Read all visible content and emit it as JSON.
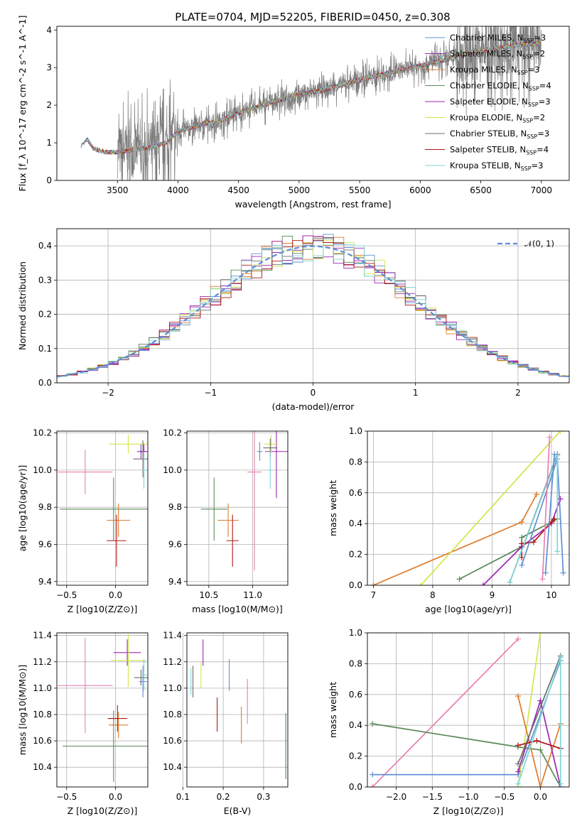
{
  "title": "PLATE=0704, MJD=52205, FIBERID=0450, z=0.308",
  "colors": {
    "Chabrier MILES": "#5f8fd6",
    "Salpeter MILES": "#9b27b0",
    "Kroupa MILES": "#df7a2a",
    "Chabrier ELODIE": "#5a8a5a",
    "Salpeter ELODIE": "#a022b0",
    "Kroupa ELODIE": "#d2e64a",
    "Chabrier STELIB": "#6e6e6e",
    "Salpeter STELIB": "#b01818",
    "Kroupa STELIB": "#7fd6d6"
  },
  "legend_spectrum": [
    {
      "name": "Chabrier MILES",
      "suffix": "=3"
    },
    {
      "name": "Salpeter MILES",
      "suffix": "=2"
    },
    {
      "name": "Kroupa MILES",
      "suffix": "=3"
    },
    {
      "name": "Chabrier ELODIE",
      "suffix": "=4"
    },
    {
      "name": "Salpeter ELODIE",
      "suffix": "=3"
    },
    {
      "name": "Kroupa ELODIE",
      "suffix": "=2"
    },
    {
      "name": "Chabrier STELIB",
      "suffix": "=3"
    },
    {
      "name": "Salpeter STELIB",
      "suffix": "=4"
    },
    {
      "name": "Kroupa STELIB",
      "suffix": "=3"
    }
  ],
  "legend_hist": "𝒩(0, 1)",
  "chart_data": [
    {
      "id": "spectrum",
      "type": "line",
      "xlabel": "wavelength [Angstrom, rest frame]",
      "ylabel": "Flux [f_λ 10^-17 erg cm^-2 s^-1 A^-1]",
      "xlim": [
        3000,
        7230
      ],
      "ylim": [
        0,
        4.1
      ],
      "xticks": [
        3500,
        4000,
        4500,
        5000,
        5500,
        6000,
        6500,
        7000
      ],
      "yticks": [
        0,
        1,
        2,
        3,
        4
      ],
      "grid": false,
      "model_points": [
        [
          3200,
          0.9
        ],
        [
          3250,
          1.1
        ],
        [
          3300,
          0.85
        ],
        [
          3400,
          0.75
        ],
        [
          3500,
          0.75
        ],
        [
          3600,
          0.8
        ],
        [
          3700,
          0.85
        ],
        [
          3800,
          0.9
        ],
        [
          3900,
          1.0
        ],
        [
          4000,
          1.3
        ],
        [
          4100,
          1.4
        ],
        [
          4200,
          1.5
        ],
        [
          4300,
          1.55
        ],
        [
          4400,
          1.65
        ],
        [
          4500,
          1.8
        ],
        [
          4600,
          1.9
        ],
        [
          4800,
          2.1
        ],
        [
          5000,
          2.3
        ],
        [
          5200,
          2.4
        ],
        [
          5400,
          2.6
        ],
        [
          5600,
          2.75
        ],
        [
          5800,
          2.9
        ],
        [
          6000,
          3.05
        ],
        [
          6200,
          3.2
        ],
        [
          6400,
          3.4
        ],
        [
          6600,
          3.5
        ],
        [
          6800,
          3.6
        ],
        [
          7000,
          3.65
        ]
      ]
    },
    {
      "id": "residual_hist",
      "type": "histogram",
      "xlabel": "(data-model)/error",
      "ylabel": "Normed distribution",
      "xlim": [
        -2.5,
        2.5
      ],
      "ylim": [
        0,
        0.45
      ],
      "xticks": [
        -2,
        -1,
        0,
        1,
        2
      ],
      "yticks": [
        0.0,
        0.1,
        0.2,
        0.3,
        0.4
      ],
      "grid": true,
      "legend": "top-right",
      "bin_width": 0.1
    },
    {
      "id": "age_vs_Z",
      "type": "scatter",
      "xlabel": "Z [log10(Z/Z⊙)]",
      "ylabel": "age [log10(age/yr)]",
      "xlim": [
        -0.6,
        0.33
      ],
      "ylim": [
        9.38,
        10.21
      ],
      "xticks": [
        -0.5,
        0.0
      ],
      "yticks": [
        9.4,
        9.6,
        9.8,
        10.0,
        10.2
      ],
      "grid": true,
      "points": [
        {
          "series": "Chabrier MILES",
          "x": 0.28,
          "y": 10.1,
          "xerr": 0.03,
          "yerr": 0.05
        },
        {
          "series": "Salpeter MILES",
          "x": 0.26,
          "y": 10.1,
          "xerr": 0.04,
          "yerr": 0.04
        },
        {
          "series": "Kroupa MILES",
          "x": 0.03,
          "y": 9.73,
          "xerr": 0.12,
          "yerr": 0.09
        },
        {
          "series": "Chabrier ELODIE",
          "x": -0.02,
          "y": 9.79,
          "xerr": 0.55,
          "yerr": 0.17
        },
        {
          "series": "Salpeter ELODIE",
          "x": 0.29,
          "y": 10.1,
          "xerr": 0.04,
          "yerr": 0.04
        },
        {
          "series": "Kroupa ELODIE",
          "x": 0.13,
          "y": 10.14,
          "xerr": 0.2,
          "yerr": 0.05
        },
        {
          "series": "Chabrier STELIB",
          "x": 0.28,
          "y": 10.06,
          "xerr": 0.1,
          "yerr": 0.1
        },
        {
          "series": "Salpeter STELIB",
          "x": 0.01,
          "y": 9.62,
          "xerr": 0.1,
          "yerr": 0.14
        },
        {
          "series": "Kroupa STELIB",
          "x": 0.29,
          "y": 10.0,
          "xerr": 0.03,
          "yerr": 0.1
        },
        {
          "series": "Pink",
          "x": -0.31,
          "y": 9.99,
          "xerr": 0.28,
          "yerr": 0.12
        }
      ]
    },
    {
      "id": "age_vs_mass",
      "type": "scatter",
      "xlabel": "mass [log10(M/M⊙)]",
      "ylabel": "",
      "xlim": [
        10.25,
        11.4
      ],
      "ylim": [
        9.38,
        10.21
      ],
      "xticks": [
        10.5,
        11.0
      ],
      "yticks": [
        9.4,
        9.6,
        9.8,
        10.0,
        10.2
      ],
      "grid": true,
      "points": [
        {
          "series": "Chabrier MILES",
          "x": 11.08,
          "y": 10.1,
          "xerr": 0.03,
          "yerr": 0.05
        },
        {
          "series": "Salpeter MILES",
          "x": 11.27,
          "y": 10.1,
          "xerr": 0.13,
          "yerr": 0.25
        },
        {
          "series": "Kroupa MILES",
          "x": 10.72,
          "y": 9.73,
          "xerr": 0.12,
          "yerr": 0.09
        },
        {
          "series": "Chabrier ELODIE",
          "x": 10.56,
          "y": 9.79,
          "xerr": 0.15,
          "yerr": 0.17
        },
        {
          "series": "Kroupa ELODIE",
          "x": 11.21,
          "y": 10.14,
          "xerr": 0.08,
          "yerr": 0.05
        },
        {
          "series": "Chabrier STELIB",
          "x": 11.2,
          "y": 10.12,
          "xerr": 0.08,
          "yerr": 0.05
        },
        {
          "series": "Salpeter STELIB",
          "x": 10.77,
          "y": 9.62,
          "xerr": 0.07,
          "yerr": 0.14
        },
        {
          "series": "Kroupa STELIB",
          "x": 11.2,
          "y": 10.0,
          "xerr": 0.03,
          "yerr": 0.1
        },
        {
          "series": "Pink",
          "x": 11.02,
          "y": 9.99,
          "xerr": 0.08,
          "yerr": 0.53
        }
      ]
    },
    {
      "id": "mw_vs_age",
      "type": "line",
      "xlabel": "age [log10(age/yr)]",
      "ylabel": "mass weight",
      "xlim": [
        6.9,
        10.3
      ],
      "ylim": [
        0,
        1.0
      ],
      "xticks": [
        7,
        8,
        9,
        10
      ],
      "yticks": [
        0.0,
        0.2,
        0.4,
        0.6,
        0.8,
        1.0
      ],
      "grid": true,
      "series": [
        {
          "series": "Kroupa MILES",
          "points": [
            [
              7.0,
              0.0
            ],
            [
              9.5,
              0.41
            ],
            [
              9.75,
              0.59
            ]
          ]
        },
        {
          "series": "Kroupa ELODIE",
          "points": [
            [
              7.8,
              0.0
            ],
            [
              10.15,
              1.0
            ]
          ]
        },
        {
          "series": "Chabrier ELODIE",
          "points": [
            [
              8.45,
              0.04
            ],
            [
              9.5,
              0.25
            ],
            [
              9.5,
              0.31
            ],
            [
              10.1,
              0.43
            ]
          ]
        },
        {
          "series": "Salpeter MILES",
          "points": [
            [
              8.85,
              0.0
            ],
            [
              9.5,
              0.25
            ],
            [
              10.0,
              0.4
            ],
            [
              10.15,
              0.56
            ]
          ]
        },
        {
          "series": "Salpeter STELIB",
          "points": [
            [
              9.5,
              0.18
            ],
            [
              9.5,
              0.27
            ],
            [
              9.7,
              0.28
            ],
            [
              10.0,
              0.41
            ],
            [
              10.05,
              0.43
            ]
          ]
        },
        {
          "series": "Chabrier MILES",
          "points": [
            [
              9.5,
              0.13
            ],
            [
              10.1,
              0.82
            ],
            [
              10.2,
              0.08
            ]
          ]
        },
        {
          "series": "Chabrier STELIB",
          "points": [
            [
              9.3,
              0.02
            ],
            [
              10.1,
              0.85
            ]
          ]
        },
        {
          "series": "Kroupa STELIB",
          "points": [
            [
              9.3,
              0.02
            ],
            [
              10.1,
              0.84
            ],
            [
              10.1,
              0.22
            ]
          ]
        },
        {
          "series": "Pink",
          "points": [
            [
              9.85,
              0.04
            ],
            [
              9.97,
              0.96
            ]
          ]
        },
        {
          "series": "Chabrier MILES",
          "points": [
            [
              9.9,
              0.08
            ],
            [
              10.05,
              0.85
            ]
          ]
        }
      ]
    },
    {
      "id": "mass_vs_Z",
      "type": "scatter",
      "xlabel": "Z [log10(Z/Z⊙)]",
      "ylabel": "mass [log10(M/M⊙)]",
      "xlim": [
        -0.6,
        0.33
      ],
      "ylim": [
        10.25,
        11.42
      ],
      "xticks": [
        -0.5,
        0.0
      ],
      "yticks": [
        10.4,
        10.6,
        10.8,
        11.0,
        11.2,
        11.4
      ],
      "grid": true,
      "points": [
        {
          "series": "Chabrier MILES",
          "x": 0.28,
          "y": 11.05,
          "xerr": 0.04,
          "yerr": 0.12
        },
        {
          "series": "Salpeter MILES",
          "x": 0.12,
          "y": 11.27,
          "xerr": 0.14,
          "yerr": 0.1
        },
        {
          "series": "Kroupa MILES",
          "x": 0.03,
          "y": 10.72,
          "xerr": 0.1,
          "yerr": 0.1
        },
        {
          "series": "Chabrier ELODIE",
          "x": -0.02,
          "y": 10.56,
          "xerr": 0.52,
          "yerr": 0.27
        },
        {
          "series": "Kroupa ELODIE",
          "x": 0.13,
          "y": 11.21,
          "xerr": 0.18,
          "yerr": 0.2
        },
        {
          "series": "Chabrier STELIB",
          "x": 0.26,
          "y": 11.08,
          "xerr": 0.07,
          "yerr": 0.06
        },
        {
          "series": "Salpeter STELIB",
          "x": 0.02,
          "y": 10.77,
          "xerr": 0.1,
          "yerr": 0.1
        },
        {
          "series": "Kroupa STELIB",
          "x": 0.29,
          "y": 11.1,
          "xerr": 0.03,
          "yerr": 0.12
        },
        {
          "series": "Pink",
          "x": -0.31,
          "y": 11.02,
          "xerr": 0.28,
          "yerr": 0.36
        }
      ]
    },
    {
      "id": "mass_vs_ebv",
      "type": "scatter",
      "xlabel": "E(B-V)",
      "ylabel": "",
      "xlim": [
        0.11,
        0.36
      ],
      "ylim": [
        10.25,
        11.42
      ],
      "xticks": [
        0.1,
        0.2,
        0.3
      ],
      "yticks": [
        10.4,
        10.6,
        10.8,
        11.0,
        11.2,
        11.4
      ],
      "grid": true,
      "points": [
        {
          "series": "Chabrier MILES",
          "x": 0.215,
          "y": 11.1,
          "xerr": 0,
          "yerr": 0.12
        },
        {
          "series": "Salpeter MILES",
          "x": 0.15,
          "y": 11.27,
          "xerr": 0,
          "yerr": 0.1
        },
        {
          "series": "Kroupa MILES",
          "x": 0.245,
          "y": 10.72,
          "xerr": 0,
          "yerr": 0.14
        },
        {
          "series": "Chabrier ELODIE",
          "x": 0.355,
          "y": 10.56,
          "xerr": 0,
          "yerr": 0.25
        },
        {
          "series": "Kroupa ELODIE",
          "x": 0.145,
          "y": 11.1,
          "xerr": 0,
          "yerr": 0.1
        },
        {
          "series": "Chabrier STELIB",
          "x": 0.125,
          "y": 11.05,
          "xerr": 0,
          "yerr": 0.12
        },
        {
          "series": "Salpeter STELIB",
          "x": 0.185,
          "y": 10.8,
          "xerr": 0,
          "yerr": 0.13
        },
        {
          "series": "Kroupa STELIB",
          "x": 0.12,
          "y": 11.05,
          "xerr": 0,
          "yerr": 0.1
        },
        {
          "series": "Pink",
          "x": 0.26,
          "y": 10.9,
          "xerr": 0,
          "yerr": 0.17
        }
      ]
    },
    {
      "id": "mw_vs_Z",
      "type": "line",
      "xlabel": "Z [log10(Z/Z⊙)]",
      "ylabel": "mass weight",
      "xlim": [
        -2.4,
        0.4
      ],
      "ylim": [
        0,
        1.0
      ],
      "xticks": [
        -2.0,
        -1.5,
        -1.0,
        -0.5,
        0.0
      ],
      "yticks": [
        0.0,
        0.2,
        0.4,
        0.6,
        0.8,
        1.0
      ],
      "grid": true,
      "series": [
        {
          "series": "Pink",
          "points": [
            [
              -2.33,
              0.0
            ],
            [
              -0.31,
              0.96
            ]
          ]
        },
        {
          "series": "Chabrier MILES",
          "points": [
            [
              -2.33,
              0.08
            ],
            [
              -0.31,
              0.08
            ],
            [
              0.28,
              0.82
            ]
          ]
        },
        {
          "series": "Chabrier ELODIE",
          "points": [
            [
              -2.33,
              0.41
            ],
            [
              -0.31,
              0.26
            ],
            [
              0.0,
              0.24
            ],
            [
              0.28,
              0.0
            ]
          ]
        },
        {
          "series": "Kroupa ELODIE",
          "points": [
            [
              -0.31,
              0.0
            ],
            [
              0.0,
              1.0
            ]
          ]
        },
        {
          "series": "Kroupa MILES",
          "points": [
            [
              -0.31,
              0.59
            ],
            [
              0.0,
              0.0
            ],
            [
              0.28,
              0.41
            ]
          ]
        },
        {
          "series": "Salpeter MILES",
          "points": [
            [
              -0.31,
              0.1
            ],
            [
              0.0,
              0.56
            ],
            [
              0.28,
              0.0
            ]
          ]
        },
        {
          "series": "Salpeter STELIB",
          "points": [
            [
              -0.31,
              0.27
            ],
            [
              -0.05,
              0.3
            ],
            [
              0.28,
              0.25
            ]
          ]
        },
        {
          "series": "Chabrier STELIB",
          "points": [
            [
              -0.31,
              0.15
            ],
            [
              0.28,
              0.85
            ]
          ]
        },
        {
          "series": "Kroupa STELIB",
          "points": [
            [
              -0.31,
              0.02
            ],
            [
              0.28,
              0.84
            ],
            [
              0.28,
              0.02
            ]
          ]
        }
      ]
    }
  ]
}
